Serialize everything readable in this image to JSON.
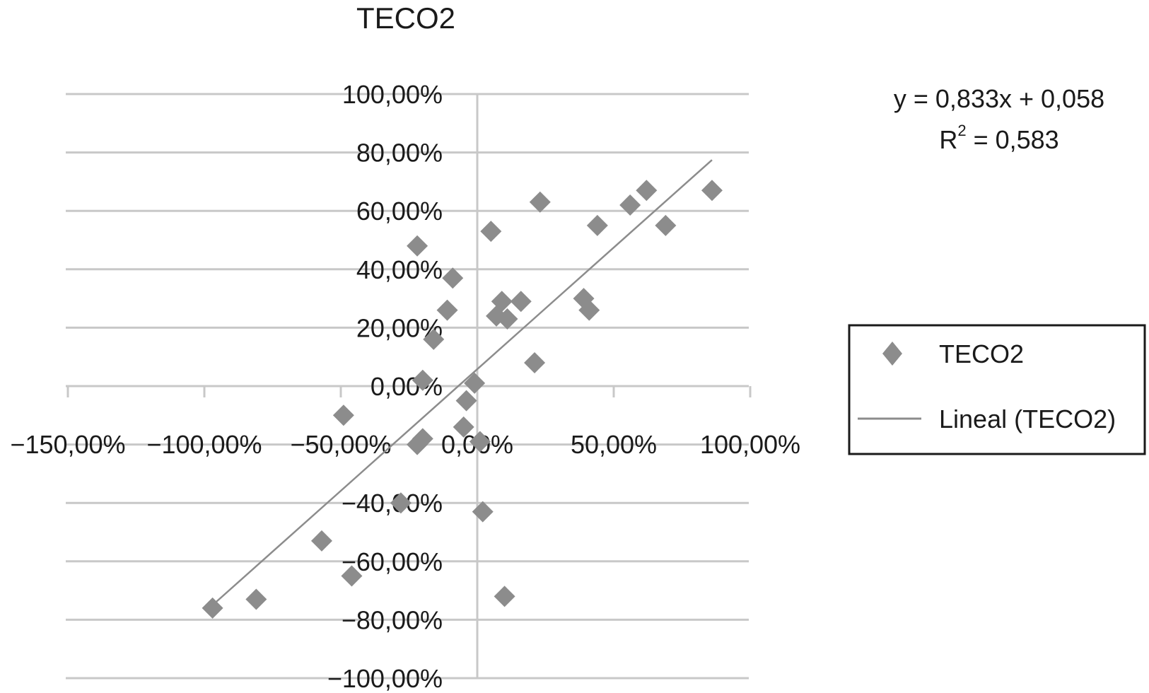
{
  "chart_data": {
    "type": "scatter",
    "title": "TECO2",
    "xlabel": "",
    "ylabel": "",
    "xlim": [
      -1.5,
      1.0
    ],
    "ylim": [
      -1.0,
      1.0
    ],
    "x_ticks": [
      -1.5,
      -1.0,
      -0.5,
      0.0,
      0.5,
      1.0
    ],
    "x_tick_labels": [
      "−150,00%",
      "−100,00%",
      "−50,00%",
      "0,00%",
      "50,00%",
      "100,00%"
    ],
    "y_ticks": [
      -1.0,
      -0.8,
      -0.6,
      -0.4,
      -0.2,
      0.0,
      0.2,
      0.4,
      0.6,
      0.8,
      1.0
    ],
    "y_tick_labels": [
      "−100,00%",
      "−80,00%",
      "−60,00%",
      "−40,00%",
      "",
      "0,00%",
      "20,00%",
      "40,00%",
      "60,00%",
      "80,00%",
      "100,00%"
    ],
    "grid": "horizontal",
    "legend_position": "right",
    "series": [
      {
        "name": "TECO2",
        "kind": "scatter",
        "color": "#8c8c8c",
        "points": [
          {
            "x": -0.97,
            "y": -0.76
          },
          {
            "x": -0.81,
            "y": -0.73
          },
          {
            "x": -0.57,
            "y": -0.53
          },
          {
            "x": -0.46,
            "y": -0.65
          },
          {
            "x": -0.49,
            "y": -0.1
          },
          {
            "x": -0.28,
            "y": -0.4
          },
          {
            "x": -0.22,
            "y": 0.48
          },
          {
            "x": -0.2,
            "y": 0.02
          },
          {
            "x": -0.2,
            "y": -0.18
          },
          {
            "x": -0.22,
            "y": -0.2
          },
          {
            "x": -0.16,
            "y": 0.16
          },
          {
            "x": -0.11,
            "y": 0.26
          },
          {
            "x": -0.09,
            "y": 0.37
          },
          {
            "x": -0.05,
            "y": -0.14
          },
          {
            "x": -0.04,
            "y": -0.05
          },
          {
            "x": -0.01,
            "y": 0.01
          },
          {
            "x": 0.01,
            "y": -0.19
          },
          {
            "x": 0.02,
            "y": -0.43
          },
          {
            "x": 0.05,
            "y": 0.53
          },
          {
            "x": 0.07,
            "y": 0.24
          },
          {
            "x": 0.09,
            "y": 0.29
          },
          {
            "x": 0.11,
            "y": 0.23
          },
          {
            "x": 0.1,
            "y": -0.72
          },
          {
            "x": 0.16,
            "y": 0.29
          },
          {
            "x": 0.21,
            "y": 0.08
          },
          {
            "x": 0.23,
            "y": 0.63
          },
          {
            "x": 0.39,
            "y": 0.3
          },
          {
            "x": 0.41,
            "y": 0.26
          },
          {
            "x": 0.44,
            "y": 0.55
          },
          {
            "x": 0.56,
            "y": 0.62
          },
          {
            "x": 0.62,
            "y": 0.67
          },
          {
            "x": 0.69,
            "y": 0.55
          },
          {
            "x": 0.86,
            "y": 0.67
          }
        ]
      },
      {
        "name": "Lineal (TECO2)",
        "kind": "trendline",
        "color": "#8c8c8c",
        "slope": 0.833,
        "intercept": 0.058,
        "x_range": [
          -0.97,
          0.86
        ]
      }
    ],
    "annotations": {
      "equation": "y = 0,833x + 0,058",
      "r2_base": "R",
      "r2_sup": "2",
      "r2_rest": " = 0,583"
    }
  }
}
